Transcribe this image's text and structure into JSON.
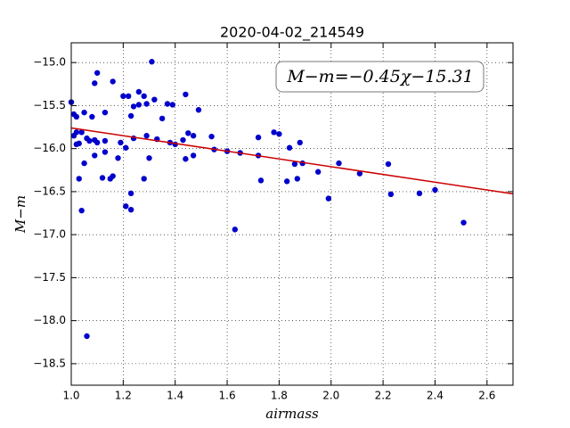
{
  "chart_data": {
    "type": "scatter",
    "title": "2020-04-02_214549",
    "x_label": "airmass",
    "y_label": "M−m",
    "annotation": "M−m=−0.45χ−15.31",
    "fit": {
      "slope": -0.45,
      "intercept": -15.31,
      "color": "#cc0000"
    },
    "color": "#0000cc",
    "grid": true,
    "xlim": [
      1.0,
      2.7
    ],
    "ylim": [
      -18.75,
      -14.77
    ],
    "xticks": [
      {
        "value": 1.0,
        "label": "1.0"
      },
      {
        "value": 1.2,
        "label": "1.2"
      },
      {
        "value": 1.4,
        "label": "1.4"
      },
      {
        "value": 1.6,
        "label": "1.6"
      },
      {
        "value": 1.8,
        "label": "1.8"
      },
      {
        "value": 2.0,
        "label": "2.0"
      },
      {
        "value": 2.2,
        "label": "2.2"
      },
      {
        "value": 2.4,
        "label": "2.4"
      },
      {
        "value": 2.6,
        "label": "2.6"
      }
    ],
    "yticks": [
      {
        "value": -15.0,
        "label": "−15.0"
      },
      {
        "value": -15.5,
        "label": "−15.5"
      },
      {
        "value": -16.0,
        "label": "−16.0"
      },
      {
        "value": -16.5,
        "label": "−16.5"
      },
      {
        "value": -17.0,
        "label": "−17.0"
      },
      {
        "value": -17.5,
        "label": "−17.5"
      },
      {
        "value": -18.0,
        "label": "−18.0"
      },
      {
        "value": -18.5,
        "label": "−18.5"
      }
    ],
    "x": [
      1.0,
      1.01,
      1.02,
      1.01,
      1.02,
      1.03,
      1.02,
      1.04,
      1.03,
      1.04,
      1.05,
      1.05,
      1.06,
      1.07,
      1.06,
      1.08,
      1.09,
      1.1,
      1.09,
      1.1,
      1.09,
      1.13,
      1.13,
      1.13,
      1.12,
      1.15,
      1.16,
      1.16,
      1.18,
      1.19,
      1.2,
      1.21,
      1.21,
      1.22,
      1.23,
      1.24,
      1.23,
      1.23,
      1.24,
      1.26,
      1.26,
      1.28,
      1.29,
      1.29,
      1.28,
      1.31,
      1.3,
      1.32,
      1.33,
      1.35,
      1.37,
      1.38,
      1.39,
      1.4,
      1.43,
      1.44,
      1.45,
      1.44,
      1.47,
      1.47,
      1.49,
      1.54,
      1.55,
      1.6,
      1.63,
      1.65,
      1.72,
      1.72,
      1.73,
      1.78,
      1.8,
      1.83,
      1.84,
      1.86,
      1.87,
      1.88,
      1.89,
      1.95,
      1.99,
      2.03,
      2.11,
      2.22,
      2.23,
      2.34,
      2.4,
      2.51
    ],
    "y": [
      -15.46,
      -15.6,
      -15.63,
      -15.85,
      -15.95,
      -15.94,
      -15.81,
      -15.81,
      -16.35,
      -16.72,
      -15.58,
      -16.17,
      -15.88,
      -15.91,
      -18.18,
      -15.63,
      -15.24,
      -15.12,
      -15.9,
      -15.93,
      -16.08,
      -15.58,
      -15.91,
      -16.04,
      -16.34,
      -16.35,
      -16.32,
      -15.22,
      -16.11,
      -15.93,
      -15.39,
      -15.99,
      -16.67,
      -15.39,
      -15.62,
      -15.88,
      -16.52,
      -16.71,
      -15.51,
      -15.49,
      -15.34,
      -15.39,
      -15.48,
      -15.85,
      -16.35,
      -14.99,
      -16.11,
      -15.43,
      -15.89,
      -15.65,
      -15.48,
      -15.93,
      -15.49,
      -15.95,
      -15.9,
      -15.37,
      -15.82,
      -16.12,
      -15.85,
      -16.08,
      -15.55,
      -15.86,
      -16.01,
      -16.03,
      -16.94,
      -16.05,
      -16.08,
      -15.87,
      -16.37,
      -15.81,
      -15.83,
      -16.38,
      -15.99,
      -16.18,
      -16.35,
      -15.93,
      -16.17,
      -16.27,
      -16.58,
      -16.17,
      -16.29,
      -16.18,
      -16.53,
      -16.52,
      -16.48,
      -16.86
    ]
  }
}
